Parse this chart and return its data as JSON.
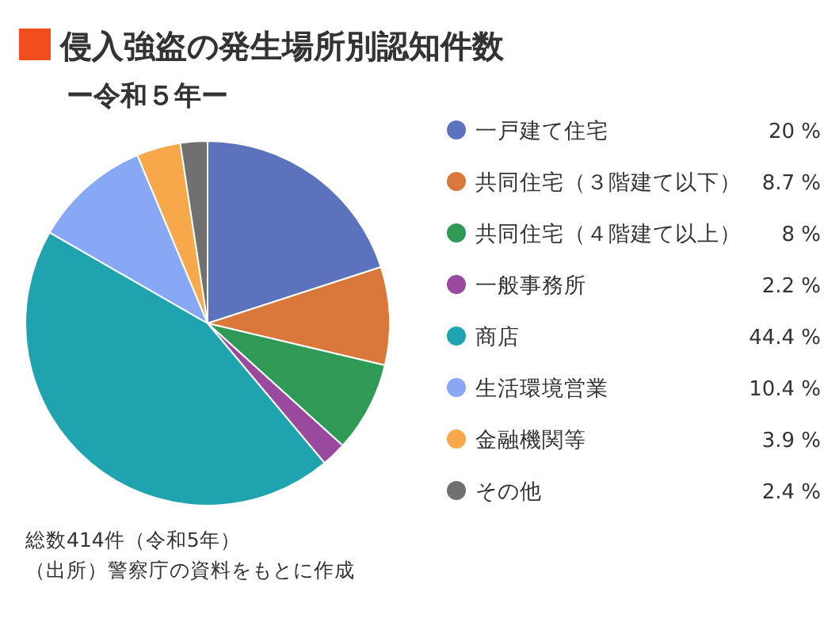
{
  "chart_data": {
    "type": "pie",
    "title": "侵入強盗の発生場所別認知件数",
    "subtitle": "ー令和５年ー",
    "categories": [
      "一戸建て住宅",
      "共同住宅（３階建て以下）",
      "共同住宅（４階建て以上）",
      "一般事務所",
      "商店",
      "生活環境営業",
      "金融機関等",
      "その他"
    ],
    "values": [
      20,
      8.7,
      8,
      2.2,
      44.4,
      10.4,
      3.9,
      2.4
    ],
    "colors": [
      "#5b72bd",
      "#d9783a",
      "#2e9a55",
      "#9a4a9e",
      "#1fa3ae",
      "#86a8f5",
      "#f6a84a",
      "#707070"
    ],
    "value_labels": [
      "20 %",
      "8.7 %",
      "8 %",
      "2.2 %",
      "44.4 %",
      "10.4 %",
      "3.9 %",
      "2.4 %"
    ],
    "legend": "right",
    "annotations": [
      "総数414件（令和5年）",
      "（出所）警察庁の資料をもとに作成"
    ]
  }
}
